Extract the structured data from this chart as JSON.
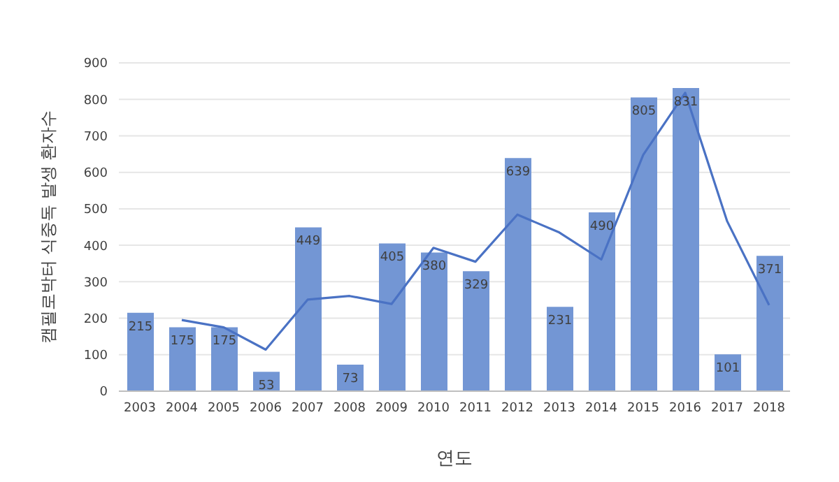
{
  "chart_data": {
    "type": "bar",
    "xlabel": "연도",
    "ylabel": "캠필로박터 식중독 발생 환자수",
    "categories": [
      "2003",
      "2004",
      "2005",
      "2006",
      "2007",
      "2008",
      "2009",
      "2010",
      "2011",
      "2012",
      "2013",
      "2014",
      "2015",
      "2016",
      "2017",
      "2018"
    ],
    "series": [
      {
        "color": "#7396d4",
        "values": [
          215,
          175,
          175,
          53,
          449,
          73,
          405,
          380,
          329,
          639,
          231,
          490,
          805,
          831,
          101,
          371
        ],
        "value_labels": [
          "215",
          "175",
          "175",
          "53",
          "449",
          "73",
          "405",
          "380",
          "329",
          "639",
          "231",
          "490",
          "805",
          "831",
          "101",
          "371"
        ]
      },
      {
        "type": "line",
        "color": "#4a72c4",
        "values": [
          null,
          195,
          175,
          114,
          251,
          261,
          239,
          393,
          355,
          484,
          435,
          361,
          648,
          818,
          466,
          236
        ]
      }
    ],
    "ylim": [
      0,
      900
    ],
    "yticks": [
      0,
      100,
      200,
      300,
      400,
      500,
      600,
      700,
      800,
      900
    ],
    "grid": "y",
    "legend": false,
    "marker": "none"
  }
}
